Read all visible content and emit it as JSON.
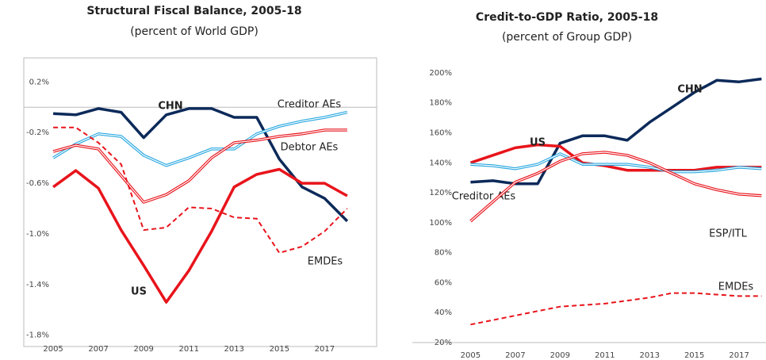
{
  "chart_data": [
    {
      "type": "line",
      "title": "Structural Fiscal Balance, 2005-18",
      "subtitle": "(percent of World GDP)",
      "x": [
        2005,
        2006,
        2007,
        2008,
        2009,
        2010,
        2011,
        2012,
        2013,
        2014,
        2015,
        2016,
        2017,
        2018
      ],
      "xlim": [
        2003.7,
        2019.3
      ],
      "xticks": [
        2005,
        2007,
        2009,
        2011,
        2013,
        2015,
        2017
      ],
      "ylim": [
        -1.89,
        0.39
      ],
      "yticks": [
        {
          "value": 0.2,
          "label": "0.2%"
        },
        {
          "value": -0.2,
          "label": "-0.2%"
        },
        {
          "value": -0.6,
          "label": "-0.6%"
        },
        {
          "value": -1.0,
          "label": "-1.0%"
        },
        {
          "value": -1.4,
          "label": "-1.4%"
        },
        {
          "value": -1.8,
          "label": "-1.8%"
        }
      ],
      "hline": 0,
      "series": [
        {
          "name": "CHN",
          "color": "#0c2a5a",
          "style": "thick",
          "values": [
            -0.05,
            -0.06,
            -0.01,
            -0.04,
            -0.24,
            -0.06,
            -0.01,
            -0.01,
            -0.08,
            -0.08,
            -0.41,
            -0.63,
            -0.72,
            -0.9
          ]
        },
        {
          "name": "Creditor AEs",
          "color": "#29a8e0",
          "style": "double",
          "values": [
            -0.4,
            -0.29,
            -0.21,
            -0.23,
            -0.38,
            -0.46,
            -0.4,
            -0.33,
            -0.33,
            -0.21,
            -0.15,
            -0.11,
            -0.08,
            -0.04
          ]
        },
        {
          "name": "Debtor AEs",
          "color": "#e8141b",
          "style": "double",
          "values": [
            -0.35,
            -0.3,
            -0.33,
            -0.54,
            -0.75,
            -0.69,
            -0.58,
            -0.4,
            -0.28,
            -0.26,
            -0.23,
            -0.21,
            -0.18,
            -0.18
          ]
        },
        {
          "name": "EMDEs",
          "color": "#e8141b",
          "style": "dashed",
          "values": [
            -0.16,
            -0.16,
            -0.28,
            -0.45,
            -0.97,
            -0.95,
            -0.79,
            -0.8,
            -0.87,
            -0.88,
            -1.15,
            -1.1,
            -0.98,
            -0.8
          ]
        },
        {
          "name": "US",
          "color": "#e8141b",
          "style": "thick",
          "values": [
            -0.63,
            -0.5,
            -0.64,
            -0.97,
            -1.25,
            -1.54,
            -1.29,
            -0.98,
            -0.63,
            -0.53,
            -0.49,
            -0.6,
            -0.6,
            -0.7
          ]
        }
      ]
    },
    {
      "type": "line",
      "title": "Credit-to-GDP Ratio, 2005-18",
      "subtitle": "(percent of Group GDP)",
      "x": [
        2005,
        2006,
        2007,
        2008,
        2009,
        2010,
        2011,
        2012,
        2013,
        2014,
        2015,
        2016,
        2017,
        2018
      ],
      "xlim": [
        2002.4,
        2018.2
      ],
      "xticks": [
        2005,
        2007,
        2009,
        2011,
        2013,
        2015,
        2017
      ],
      "ylim": [
        20,
        210
      ],
      "yticks": [
        {
          "value": 200,
          "label": "200%"
        },
        {
          "value": 180,
          "label": "180%"
        },
        {
          "value": 160,
          "label": "160%"
        },
        {
          "value": 140,
          "label": "140%"
        },
        {
          "value": 120,
          "label": "120%"
        },
        {
          "value": 100,
          "label": "100%"
        },
        {
          "value": 80,
          "label": "80%"
        },
        {
          "value": 60,
          "label": "60%"
        },
        {
          "value": 40,
          "label": "40%"
        },
        {
          "value": 20,
          "label": "20%"
        }
      ],
      "series": [
        {
          "name": "CHN",
          "color": "#0c2a5a",
          "style": "thick",
          "values": [
            127,
            128,
            126,
            126,
            153,
            158,
            158,
            155,
            167,
            177,
            187,
            195,
            194,
            196
          ]
        },
        {
          "name": "US",
          "color": "#e8141b",
          "style": "thick",
          "values": [
            140,
            145,
            150,
            152,
            151,
            140,
            138,
            135,
            135,
            135,
            135,
            137,
            137,
            137
          ]
        },
        {
          "name": "Creditor AEs",
          "color": "#29a8e0",
          "style": "double",
          "values": [
            139,
            138,
            136,
            139,
            146,
            139,
            139,
            139,
            137,
            134,
            134,
            135,
            137,
            136
          ]
        },
        {
          "name": "ESP/ITL",
          "color": "#e8141b",
          "style": "double",
          "values": [
            101,
            114,
            127,
            133,
            141,
            146,
            147,
            145,
            140,
            133,
            126,
            122,
            119,
            118
          ]
        },
        {
          "name": "EMDEs",
          "color": "#e8141b",
          "style": "dashed",
          "values": [
            32,
            35,
            38,
            41,
            44,
            45,
            46,
            48,
            50,
            53,
            53,
            52,
            51,
            51
          ]
        }
      ]
    }
  ]
}
